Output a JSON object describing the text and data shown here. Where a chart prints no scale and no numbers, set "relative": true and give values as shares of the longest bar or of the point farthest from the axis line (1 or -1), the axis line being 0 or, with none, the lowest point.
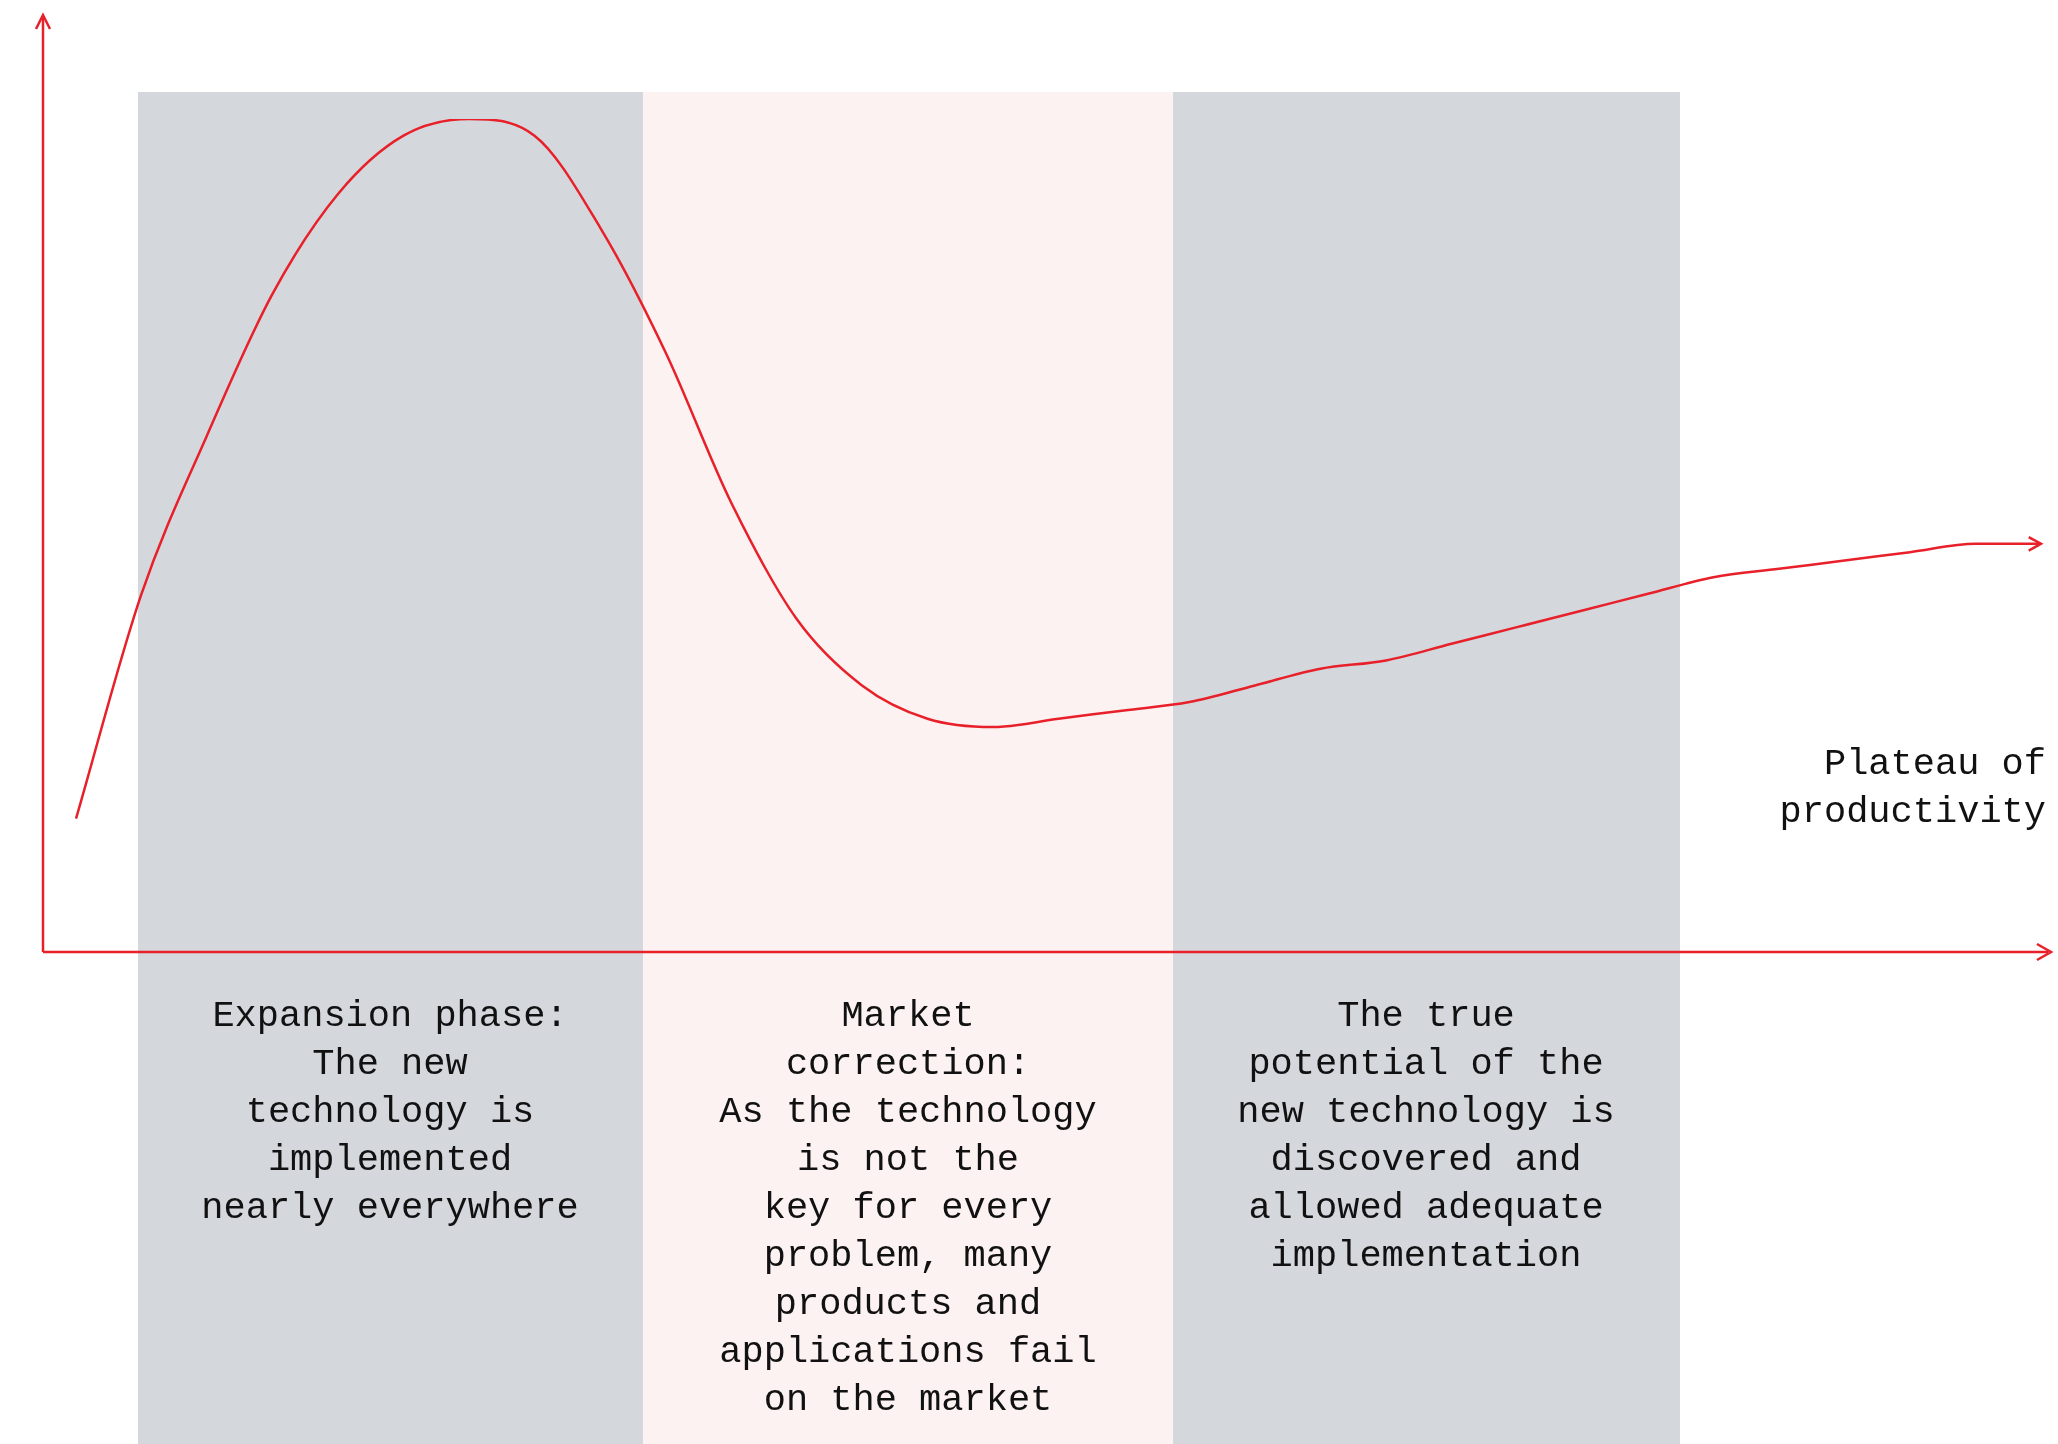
{
  "chart_data": {
    "type": "line",
    "relative": true,
    "marker": "none",
    "categories": [
      null,
      null,
      null,
      null,
      null,
      null,
      null,
      null,
      null,
      null,
      null,
      null,
      null,
      null,
      null,
      null,
      null,
      null,
      null,
      null,
      null,
      null,
      null,
      null,
      null,
      null,
      null,
      null,
      null,
      null,
      null
    ],
    "series": [
      {
        "color": "#e8202a",
        "values": [
          0.16,
          0.43,
          0.62,
          0.79,
          0.91,
          0.98,
          1,
          0.98,
          0.87,
          0.72,
          0.54,
          0.4,
          0.32,
          0.28,
          0.27,
          0.28,
          0.29,
          0.3,
          0.32,
          0.34,
          0.35,
          0.37,
          0.39,
          0.41,
          0.43,
          0.45,
          0.46,
          0.47,
          0.48,
          0.49,
          0.49
        ]
      }
    ],
    "annotations": [
      "Expansion phase:\nThe new\ntechnology is\nimplemented\nnearly everywhere",
      "Market\ncorrection:\nAs the technology\nis not the\nkey for every\nproblem, many\nproducts and\napplications fail\non the market",
      "The true\npotential of the\nnew technology is\ndiscovered and\nallowed adequate\nimplementation",
      "Plateau of\nproductivity"
    ]
  }
}
